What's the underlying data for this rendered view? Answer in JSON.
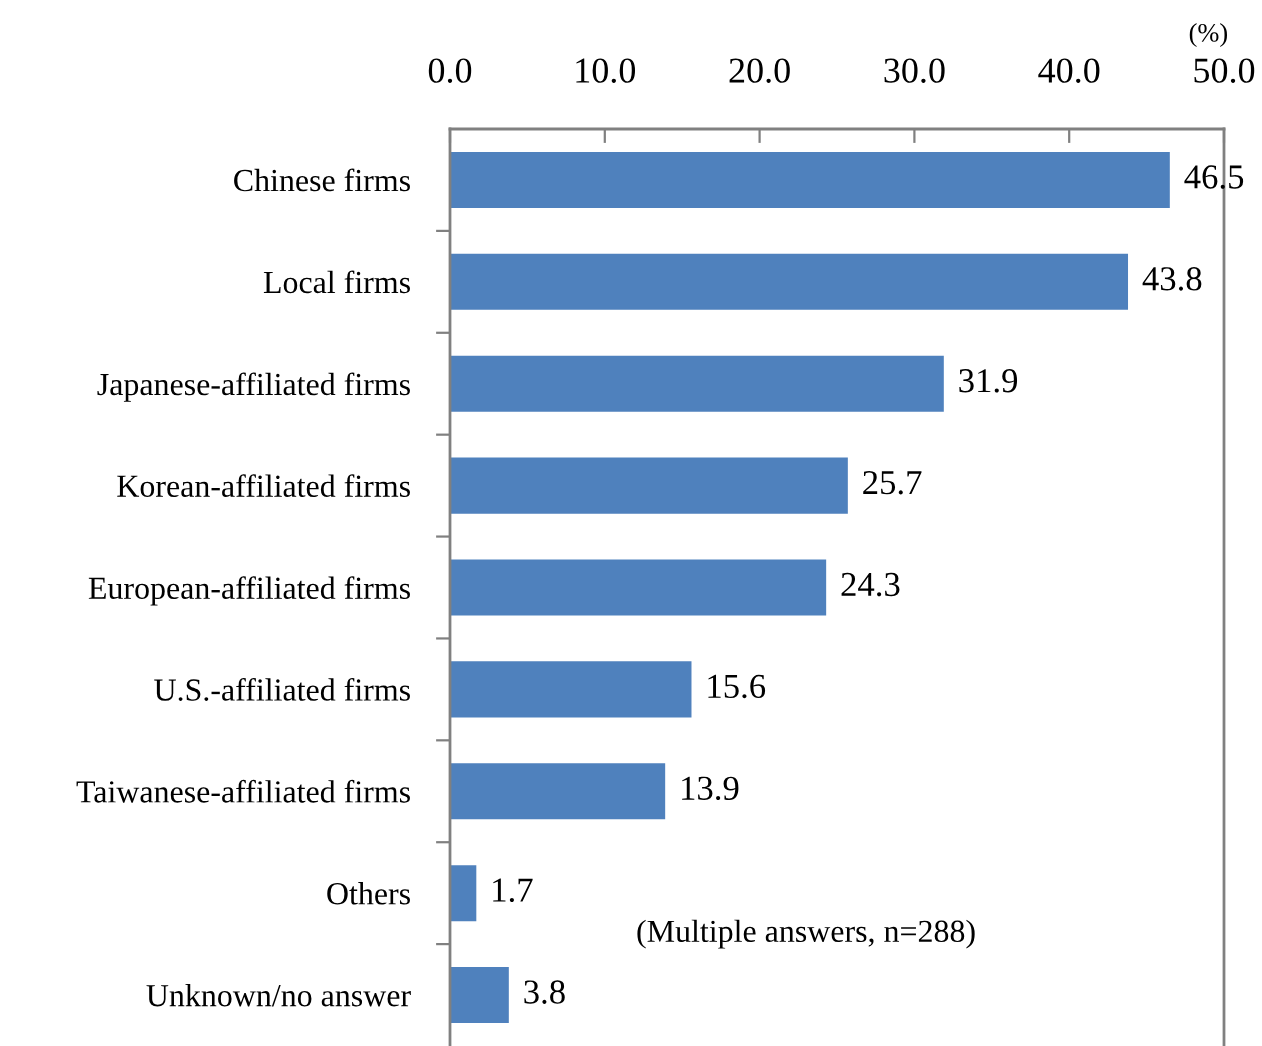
{
  "chart_data": {
    "type": "bar",
    "orientation": "horizontal",
    "categories": [
      "Chinese firms",
      "Local firms",
      "Japanese-affiliated firms",
      "Korean-affiliated firms",
      "European-affiliated firms",
      "U.S.-affiliated firms",
      "Taiwanese-affiliated firms",
      "Others",
      "Unknown/no answer"
    ],
    "values": [
      46.5,
      43.8,
      31.9,
      25.7,
      24.3,
      15.6,
      13.9,
      1.7,
      3.8
    ],
    "color": "#4f81bd",
    "xlim": [
      0,
      50
    ],
    "xticks": [
      {
        "value": 0,
        "label": "0.0"
      },
      {
        "value": 10,
        "label": "10.0"
      },
      {
        "value": 20,
        "label": "20.0"
      },
      {
        "value": 30,
        "label": "30.0"
      },
      {
        "value": 40,
        "label": "40.0"
      },
      {
        "value": 50,
        "label": "50.0"
      }
    ],
    "xlabel": "(%)",
    "data_labels": true,
    "grid": false,
    "legend": false,
    "annotations": [
      "(Multiple answers, n=288)"
    ]
  }
}
